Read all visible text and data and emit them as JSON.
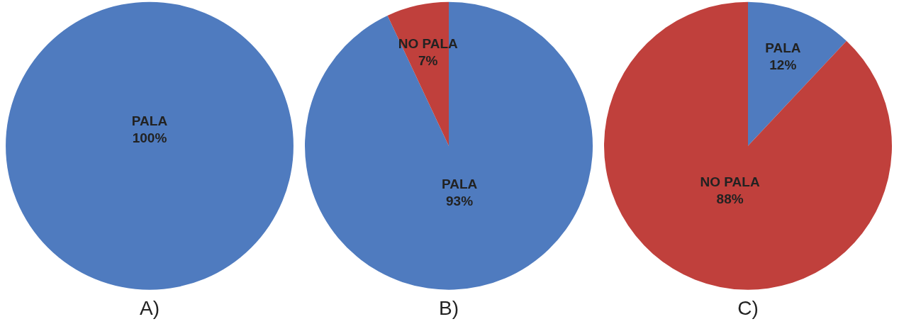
{
  "chart_data": [
    {
      "type": "pie",
      "title": "A)",
      "categories": [
        "PALA"
      ],
      "values": [
        100
      ],
      "colors": [
        "#4f7bbf"
      ],
      "value_labels": [
        "100%"
      ]
    },
    {
      "type": "pie",
      "title": "B)",
      "categories": [
        "PALA",
        "NO PALA"
      ],
      "values": [
        93,
        7
      ],
      "colors": [
        "#4f7bbf",
        "#c0403c"
      ],
      "value_labels": [
        "93%",
        "7%"
      ]
    },
    {
      "type": "pie",
      "title": "C)",
      "categories": [
        "PALA",
        "NO PALA"
      ],
      "values": [
        12,
        88
      ],
      "colors": [
        "#4f7bbf",
        "#c0403c"
      ],
      "value_labels": [
        "12%",
        "88%"
      ]
    }
  ]
}
